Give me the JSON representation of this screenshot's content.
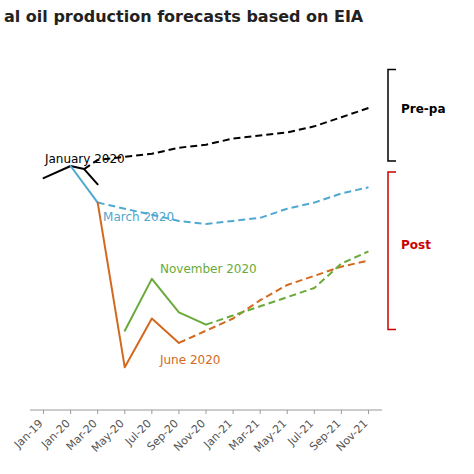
{
  "chart_data": {
    "type": "line",
    "title": "al oil production forecasts based on EIA",
    "tick_labels": "x",
    "xlim": [
      -0.5,
      12.5
    ],
    "ylim": [
      9.0,
      15.0
    ],
    "xticks": [
      {
        "value": 0,
        "label": "Jan-19"
      },
      {
        "value": 1,
        "label": "Jan-20"
      },
      {
        "value": 2,
        "label": "Mar-20"
      },
      {
        "value": 3,
        "label": "May-20"
      },
      {
        "value": 4,
        "label": "Jul-20"
      },
      {
        "value": 5,
        "label": "Sep-20"
      },
      {
        "value": 6,
        "label": "Nov-20"
      },
      {
        "value": 7,
        "label": "Jan-21"
      },
      {
        "value": 8,
        "label": "Mar-21"
      },
      {
        "value": 9,
        "label": "May-21"
      },
      {
        "value": 10,
        "label": "Jul-21"
      },
      {
        "value": 11,
        "label": "Sep-21"
      },
      {
        "value": 12,
        "label": "Nov-21"
      }
    ],
    "series": [
      {
        "color": "#000000",
        "line_style": "solid",
        "x": [
          0,
          1,
          1.5,
          2
        ],
        "values": [
          12.8,
          13.0,
          12.95,
          12.7
        ]
      },
      {
        "color": "#000000",
        "line_style": "dashed",
        "x": [
          1.5,
          2,
          3,
          4,
          5,
          6,
          7,
          8,
          9,
          10,
          11,
          12
        ],
        "values": [
          12.95,
          13.1,
          13.15,
          13.2,
          13.3,
          13.35,
          13.45,
          13.5,
          13.55,
          13.65,
          13.8,
          13.95
        ]
      },
      {
        "color": "#4fa8d0",
        "line_style": "solid",
        "x": [
          1,
          2
        ],
        "values": [
          13.0,
          12.4
        ]
      },
      {
        "color": "#4fa8d0",
        "line_style": "dashed",
        "x": [
          2,
          3,
          4,
          5,
          6,
          7,
          8,
          9,
          10,
          11,
          12
        ],
        "values": [
          12.4,
          12.3,
          12.2,
          12.1,
          12.05,
          12.1,
          12.15,
          12.3,
          12.4,
          12.55,
          12.65
        ]
      },
      {
        "color": "#d2691e",
        "line_style": "solid",
        "x": [
          2,
          3,
          4,
          5
        ],
        "values": [
          12.4,
          9.7,
          10.5,
          10.1
        ]
      },
      {
        "color": "#d2691e",
        "line_style": "dashed",
        "x": [
          5,
          6,
          7,
          8,
          9,
          10,
          11,
          12
        ],
        "values": [
          10.1,
          10.3,
          10.5,
          10.8,
          11.05,
          11.2,
          11.35,
          11.45
        ]
      },
      {
        "color": "#6aaa3a",
        "line_style": "solid",
        "x": [
          3,
          4,
          5,
          6
        ],
        "values": [
          10.3,
          11.15,
          10.6,
          10.4
        ]
      },
      {
        "color": "#6aaa3a",
        "line_style": "dashed",
        "x": [
          6,
          7,
          8,
          9,
          10,
          11,
          12
        ],
        "values": [
          10.4,
          10.55,
          10.7,
          10.85,
          11.0,
          11.4,
          11.6
        ]
      }
    ],
    "annotations": [
      {
        "text": "January 2020",
        "x": 0.05,
        "y": 13.05,
        "color": "#000000"
      },
      {
        "text": "March 2020",
        "x": 2.2,
        "y": 12.1,
        "color": "#4fa8d0"
      },
      {
        "text": "November 2020",
        "x": 4.3,
        "y": 11.25,
        "color": "#6aaa3a"
      },
      {
        "text": "June 2020",
        "x": 4.3,
        "y": 9.75,
        "color": "#d2691e"
      },
      {
        "text": "Pre-pa",
        "color": "#000000"
      },
      {
        "text": "Post",
        "color": "#cc0000"
      }
    ]
  }
}
